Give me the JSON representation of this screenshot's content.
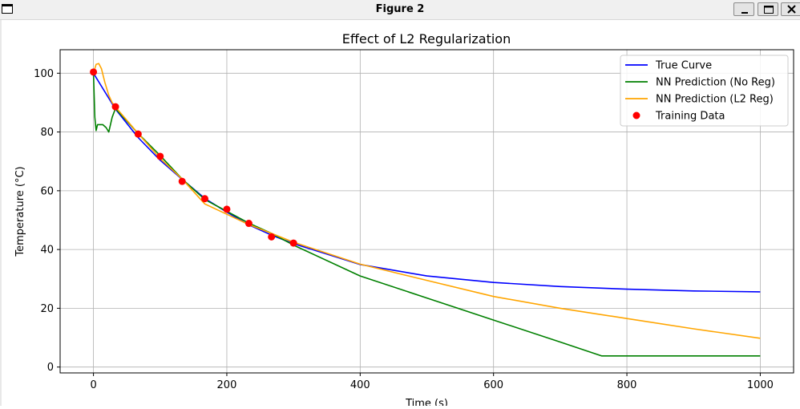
{
  "window": {
    "title": "Figure 2",
    "buttons": {
      "minimize": "minimize-icon",
      "maximize": "maximize-icon",
      "close": "close-icon"
    }
  },
  "chart_data": {
    "type": "line",
    "title": "Effect of L2 Regularization",
    "xlabel": "Time (s)",
    "ylabel": "Temperature (°C)",
    "xlim": [
      -50,
      1050
    ],
    "ylim": [
      -2,
      108
    ],
    "xticks": [
      0,
      200,
      400,
      600,
      800,
      1000
    ],
    "yticks": [
      0,
      20,
      40,
      60,
      80,
      100
    ],
    "grid": true,
    "legend_position": "top-right",
    "series": [
      {
        "name": "True Curve",
        "kind": "line",
        "color": "#0000ff",
        "x": [
          0,
          33,
          67,
          100,
          133,
          167,
          200,
          233,
          267,
          300,
          400,
          500,
          600,
          700,
          800,
          900,
          1000
        ],
        "y": [
          100,
          87.8,
          78.1,
          70.4,
          63.9,
          57.4,
          52.7,
          48.4,
          44.9,
          42.0,
          34.9,
          31.0,
          28.8,
          27.4,
          26.5,
          25.9,
          25.6
        ]
      },
      {
        "name": "NN Prediction (No Reg)",
        "kind": "line",
        "color": "#008000",
        "x": [
          0,
          2,
          4,
          6,
          9,
          14,
          19,
          23,
          28,
          33,
          67,
          100,
          133,
          167,
          200,
          233,
          267,
          300,
          400,
          500,
          600,
          700,
          762,
          800,
          900,
          1000
        ],
        "y": [
          100,
          85,
          80.5,
          82.5,
          82.5,
          82.5,
          81.5,
          80,
          85,
          88,
          79.5,
          72,
          64,
          57,
          53,
          49,
          45.5,
          41.5,
          31,
          23.5,
          16,
          8.5,
          3.8,
          3.8,
          3.8,
          3.8
        ]
      },
      {
        "name": "NN Prediction (L2 Reg)",
        "kind": "line",
        "color": "#ffa500",
        "x": [
          0,
          4,
          8,
          12,
          17,
          23,
          28,
          33,
          67,
          100,
          133,
          167,
          200,
          233,
          267,
          300,
          400,
          500,
          600,
          700,
          800,
          900,
          1000
        ],
        "y": [
          100,
          103,
          103.3,
          101.5,
          97,
          92.5,
          90,
          88.5,
          79.5,
          71,
          64,
          55.5,
          52,
          48.5,
          45.5,
          42.5,
          35,
          29.5,
          24,
          20,
          16.5,
          13,
          9.8
        ]
      },
      {
        "name": "Training Data",
        "kind": "scatter",
        "color": "#ff0000",
        "x": [
          0,
          33,
          67,
          100,
          133,
          167,
          200,
          233,
          267,
          300
        ],
        "y": [
          100.4,
          88.6,
          79.3,
          71.7,
          63.2,
          57.3,
          53.7,
          48.9,
          44.3,
          42.2
        ]
      }
    ]
  }
}
